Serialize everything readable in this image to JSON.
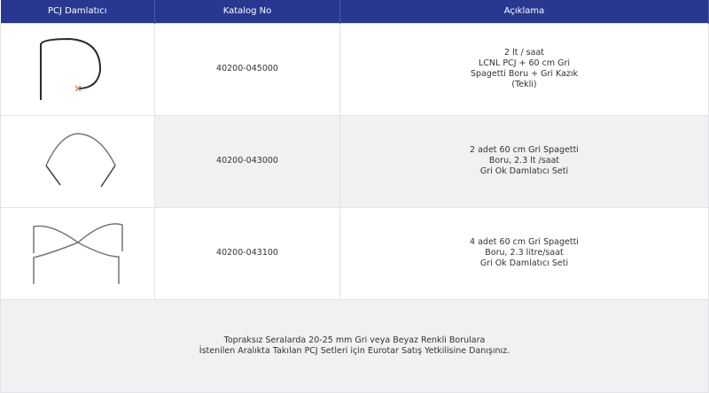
{
  "header": {
    "col1": "PCJ Damlatıcı",
    "col2": "Katalog No",
    "col3": "Açıklama"
  },
  "rows": [
    {
      "image_icon": "pcj-single-dripper-image",
      "catalog": "40200-045000",
      "desc": [
        "2 lt / saat",
        "LCNL PCJ + 60 cm Gri",
        "Spagetti Boru + Gri Kazık",
        "(Tekli)"
      ]
    },
    {
      "image_icon": "pcj-double-set-image",
      "catalog": "40200-043000",
      "desc": [
        "2 adet 60 cm Gri Spagetti",
        "Boru, 2.3 lt /saat",
        "Gri Ok Damlatıcı Seti"
      ]
    },
    {
      "image_icon": "pcj-quad-set-image",
      "catalog": "40200-043100",
      "desc": [
        "4 adet 60 cm Gri Spagetti",
        "Boru, 2.3 litre/saat",
        "Gri Ok Damlatıcı Seti"
      ]
    }
  ],
  "footer": [
    "Topraksız Seralarda 20-25 mm Gri veya Beyaz Renkli Borulara",
    "İstenilen Aralıkta Takılan PCJ Setleri için Eurotar Satış Yetkilisine Danışınız."
  ],
  "colors": {
    "header_bg": "#283891",
    "alt_row": "#f0f1f3"
  }
}
